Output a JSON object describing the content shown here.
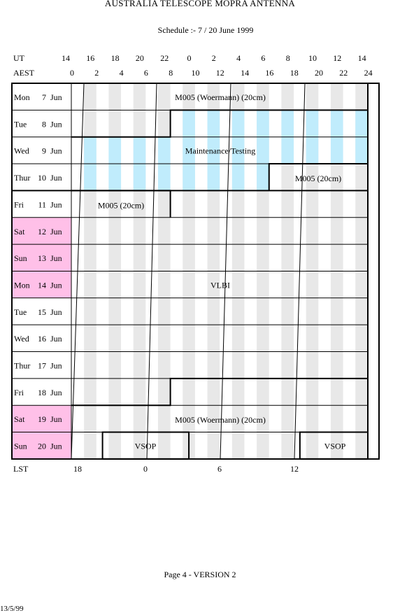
{
  "title": "AUSTRALIA TELESCOPE MOPRA ANTENNA",
  "subtitle": "Schedule :- 7 / 20 June 1999",
  "ut_label": "UT",
  "aest_label": "AEST",
  "lst_label": "LST",
  "ut_ticks": [
    "14",
    "16",
    "18",
    "20",
    "22",
    "0",
    "2",
    "4",
    "6",
    "8",
    "10",
    "12",
    "14"
  ],
  "aest_ticks": [
    "0",
    "2",
    "4",
    "6",
    "8",
    "10",
    "12",
    "14",
    "16",
    "18",
    "20",
    "22",
    "24"
  ],
  "lst_ticks": [
    "18",
    "0",
    "6",
    "12"
  ],
  "days": [
    {
      "dow": "Mon",
      "day": "7",
      "mon": "Jun",
      "weekend": false
    },
    {
      "dow": "Tue",
      "day": "8",
      "mon": "Jun",
      "weekend": false
    },
    {
      "dow": "Wed",
      "day": "9",
      "mon": "Jun",
      "weekend": false
    },
    {
      "dow": "Thur",
      "day": "10",
      "mon": "Jun",
      "weekend": false
    },
    {
      "dow": "Fri",
      "day": "11",
      "mon": "Jun",
      "weekend": false
    },
    {
      "dow": "Sat",
      "day": "12",
      "mon": "Jun",
      "weekend": true
    },
    {
      "dow": "Sun",
      "day": "13",
      "mon": "Jun",
      "weekend": true
    },
    {
      "dow": "Mon",
      "day": "14",
      "mon": "Jun",
      "weekend": true
    },
    {
      "dow": "Tue",
      "day": "15",
      "mon": "Jun",
      "weekend": false
    },
    {
      "dow": "Wed",
      "day": "16",
      "mon": "Jun",
      "weekend": false
    },
    {
      "dow": "Thur",
      "day": "17",
      "mon": "Jun",
      "weekend": false
    },
    {
      "dow": "Fri",
      "day": "18",
      "mon": "Jun",
      "weekend": false
    },
    {
      "dow": "Sat",
      "day": "19",
      "mon": "Jun",
      "weekend": true
    },
    {
      "dow": "Sun",
      "day": "20",
      "mon": "Jun",
      "weekend": true
    }
  ],
  "sessions": {
    "m005_top": "M005 (Woermann) (20cm)",
    "maintenance": "Maintenance/Testing",
    "m005_thu": "M005 (20cm)",
    "m005_fri": "M005 (20cm)",
    "vlbi": "VLBI",
    "m005_bottom": "M005 (Woermann) (20cm)",
    "vsop_1": "VSOP",
    "vsop_2": "VSOP"
  },
  "footer": "Page 4 - VERSION 2",
  "date": "13/5/99",
  "colors": {
    "weekend": "#ffc0e8",
    "maintenance": "#c0ecfc",
    "stripe": "#e8e8e8"
  }
}
